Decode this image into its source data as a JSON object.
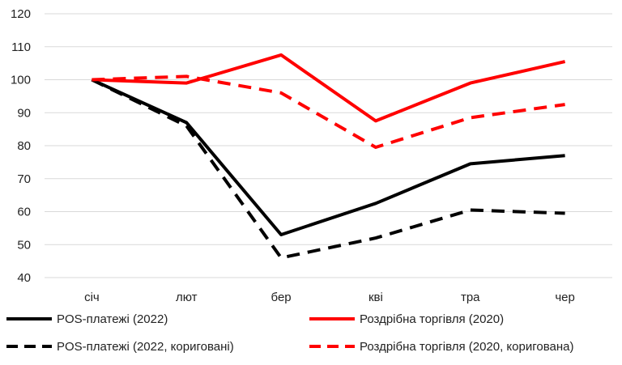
{
  "chart_data": {
    "type": "line",
    "categories": [
      "січ",
      "лют",
      "бер",
      "кві",
      "тра",
      "чер"
    ],
    "ylim": [
      40,
      120
    ],
    "yticks": [
      40,
      50,
      60,
      70,
      80,
      90,
      100,
      110,
      120
    ],
    "grid": true,
    "legend_position": "bottom",
    "series": [
      {
        "name": "POS-платежі (2022)",
        "color": "#000000",
        "dash": "solid",
        "values": [
          100,
          87,
          53,
          62.5,
          74.5,
          77
        ]
      },
      {
        "name": "Роздрібна торгівля (2020)",
        "color": "#ff0000",
        "dash": "solid",
        "values": [
          100,
          99,
          107.5,
          87.5,
          99,
          105.5
        ]
      },
      {
        "name": "POS-платежі (2022, кориговані)",
        "color": "#000000",
        "dash": "dashed",
        "values": [
          100,
          86,
          46,
          52,
          60.5,
          59.5
        ]
      },
      {
        "name": "Роздрібна торгівля (2020, коригована)",
        "color": "#ff0000",
        "dash": "dashed",
        "values": [
          100,
          101,
          96,
          79.5,
          88.5,
          92.5
        ]
      }
    ]
  }
}
